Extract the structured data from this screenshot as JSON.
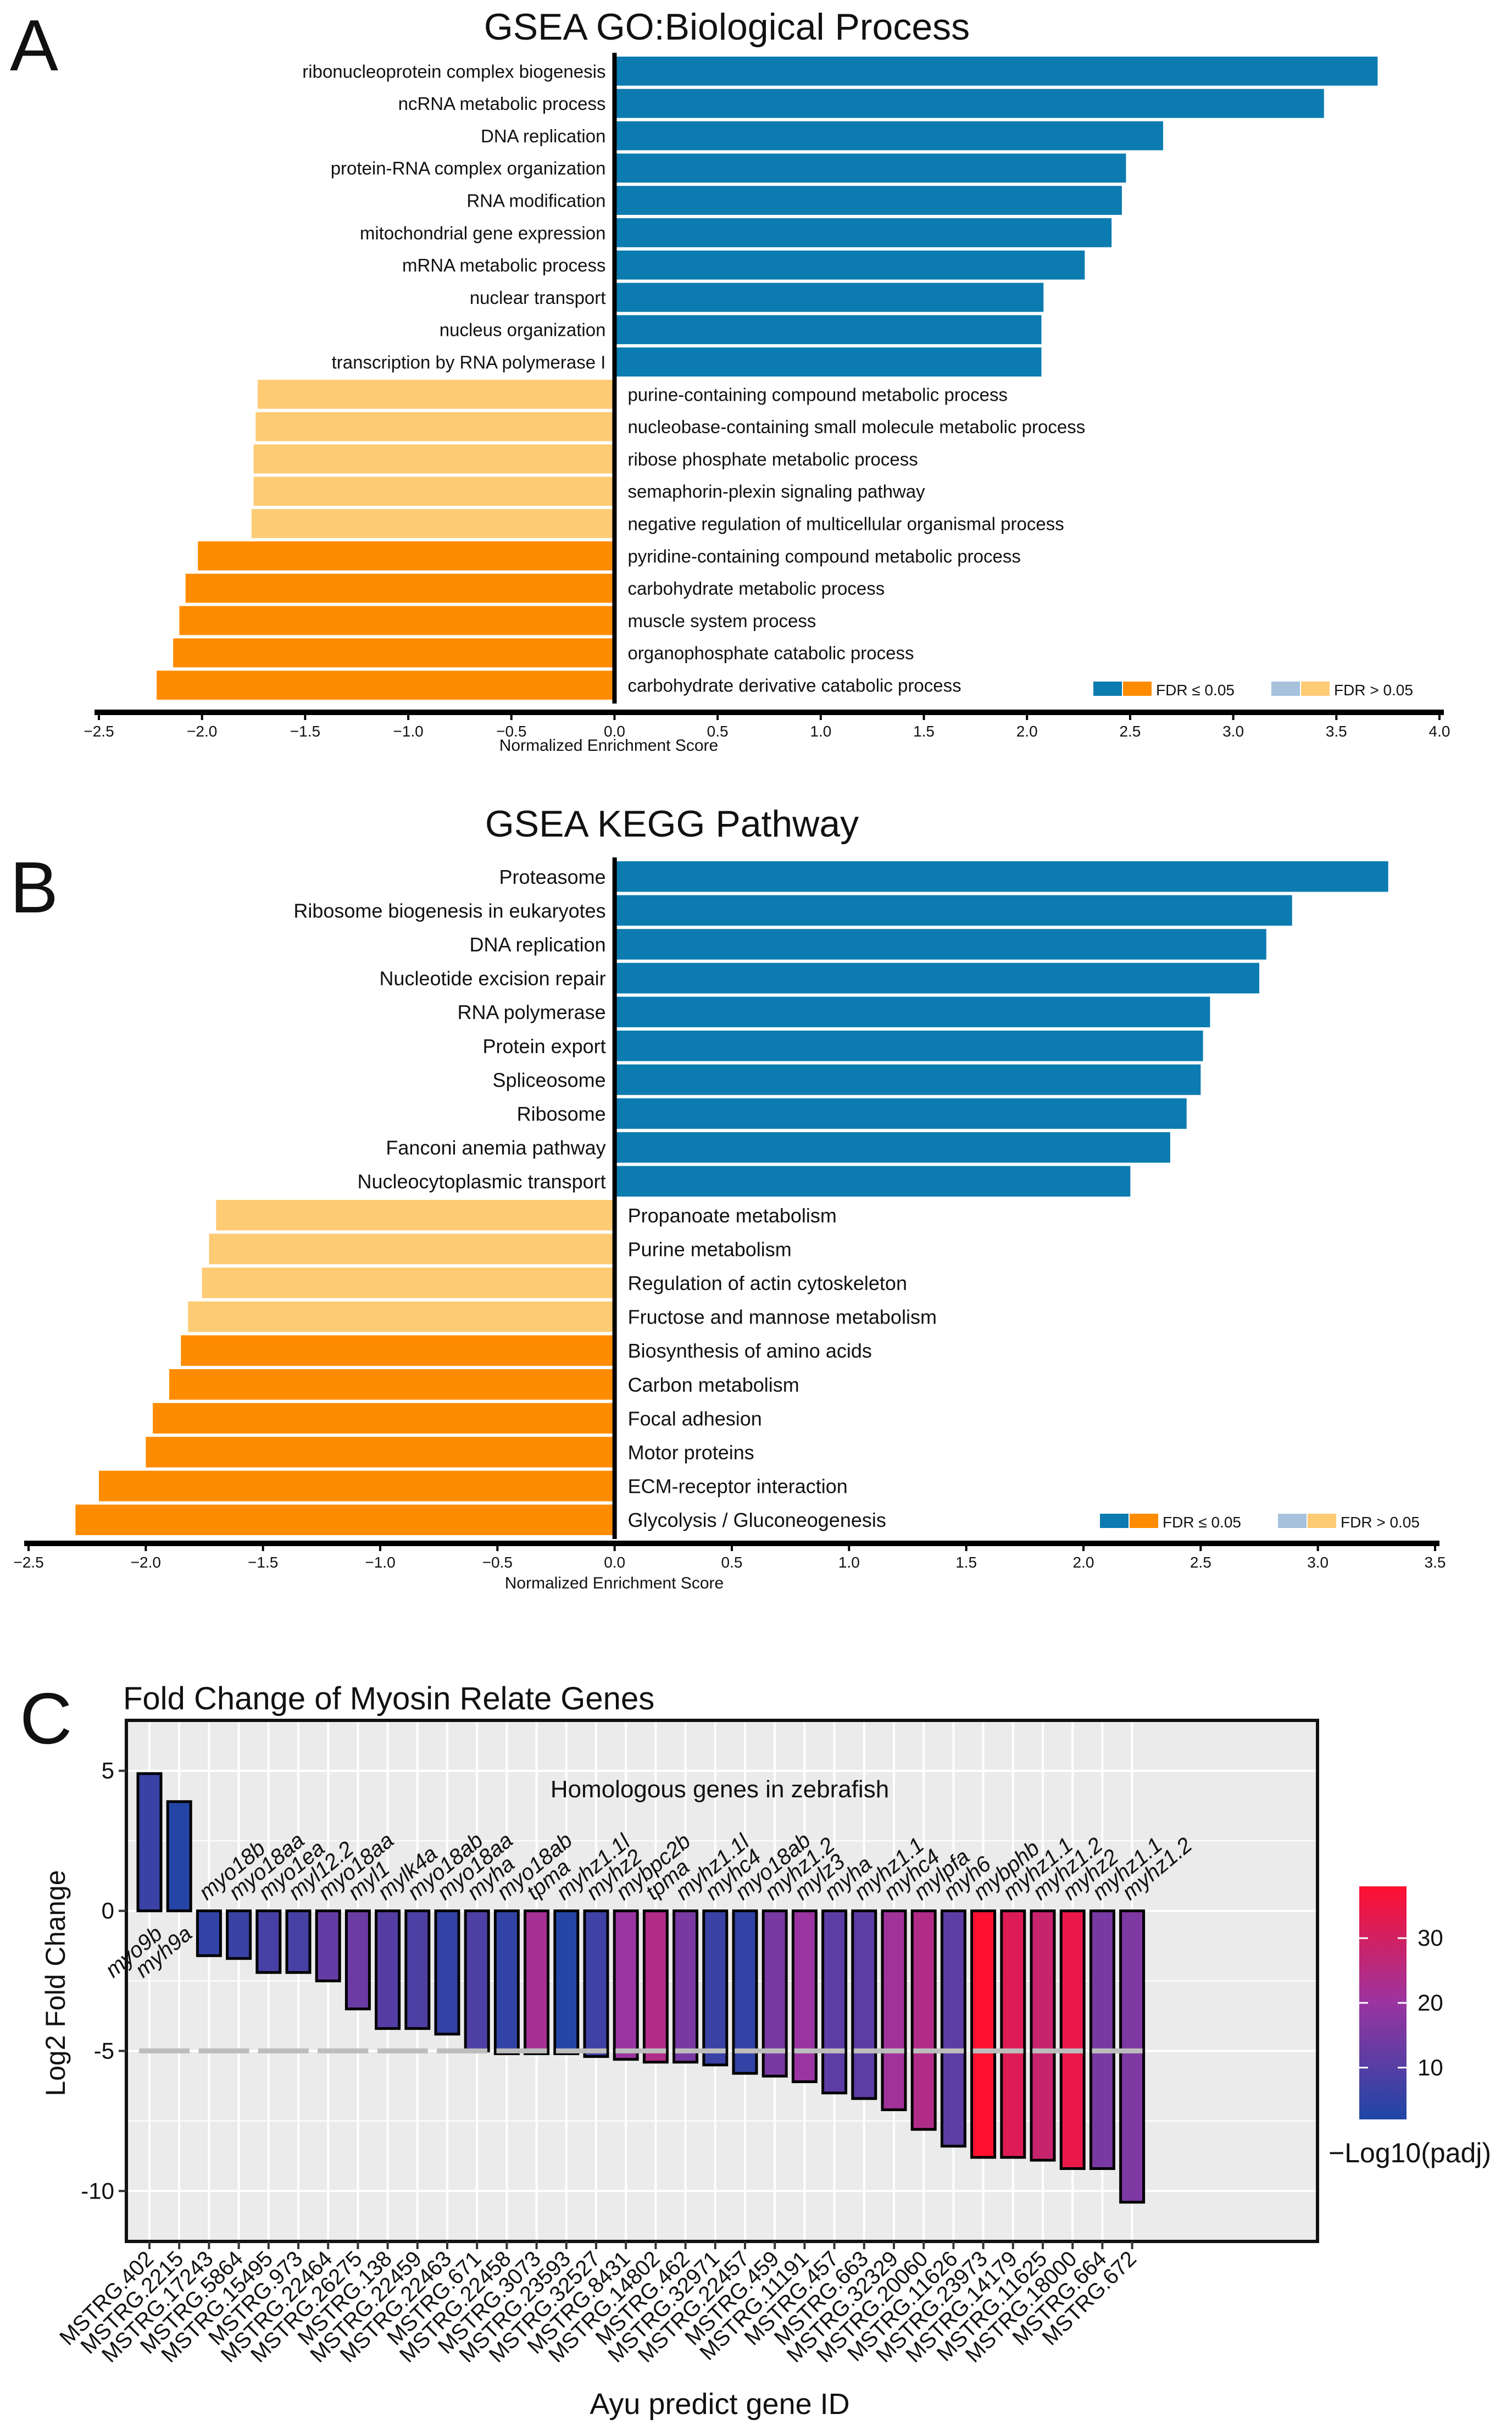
{
  "figure": {
    "panel_letters": [
      "A",
      "B",
      "C"
    ]
  },
  "colors": {
    "up_sig": "#0b7bb0",
    "up_ns": "#a6c1dc",
    "down_sig": "#ff8c00",
    "down_ns": "#fdcb74",
    "heat_low": "#1e46a6",
    "heat_mid": "#9a34a0",
    "heat_high": "#ff1030",
    "dash": "#bdbdbd"
  },
  "chart_data": [
    {
      "id": "A",
      "type": "bar",
      "orientation": "horizontal",
      "title": "GSEA GO:Biological Process",
      "xlabel": "Normalized Enrichment Score",
      "xlim": [
        -2.5,
        4.0
      ],
      "xticks": [
        "−2.5",
        "−2.0",
        "−1.5",
        "−1.0",
        "−0.5",
        "0.0",
        "0.5",
        "1.0",
        "1.5",
        "2.0",
        "2.5",
        "3.0",
        "3.5",
        "4.0"
      ],
      "legend": {
        "placement": "bottom-right",
        "sig_label": "FDR ≤ 0.05",
        "ns_label": "FDR > 0.05"
      },
      "categories": [
        "ribonucleoprotein complex biogenesis",
        "ncRNA metabolic process",
        "DNA replication",
        "protein-RNA complex organization",
        "RNA modification",
        "mitochondrial gene expression",
        "mRNA metabolic process",
        "nuclear transport",
        "nucleus organization",
        "transcription by RNA polymerase I",
        "purine-containing compound metabolic process",
        "nucleobase-containing small molecule metabolic process",
        "ribose phosphate metabolic process",
        "semaphorin-plexin signaling pathway",
        "negative regulation of multicellular organismal process",
        "pyridine-containing compound metabolic process",
        "carbohydrate metabolic process",
        "muscle system process",
        "organophosphate catabolic process",
        "carbohydrate derivative catabolic process"
      ],
      "values": [
        3.7,
        3.44,
        2.66,
        2.48,
        2.46,
        2.41,
        2.28,
        2.08,
        2.07,
        2.07,
        -1.73,
        -1.74,
        -1.75,
        -1.75,
        -1.76,
        -2.02,
        -2.08,
        -2.11,
        -2.14,
        -2.22
      ],
      "fdr_significant": [
        true,
        true,
        true,
        true,
        true,
        true,
        true,
        true,
        true,
        true,
        false,
        false,
        false,
        false,
        false,
        true,
        true,
        true,
        true,
        true
      ]
    },
    {
      "id": "B",
      "type": "bar",
      "orientation": "horizontal",
      "title": "GSEA KEGG Pathway",
      "xlabel": "Normalized Enrichment Score",
      "xlim": [
        -2.5,
        3.5
      ],
      "xticks": [
        "−2.5",
        "−2.0",
        "−1.5",
        "−1.0",
        "−0.5",
        "0.0",
        "0.5",
        "1.0",
        "1.5",
        "2.0",
        "2.5",
        "3.0",
        "3.5"
      ],
      "legend": {
        "placement": "bottom-right",
        "sig_label": "FDR ≤ 0.05",
        "ns_label": "FDR > 0.05"
      },
      "categories": [
        "Proteasome",
        "Ribosome biogenesis in eukaryotes",
        "DNA replication",
        "Nucleotide excision repair",
        "RNA polymerase",
        "Protein export",
        "Spliceosome",
        "Ribosome",
        "Fanconi anemia pathway",
        "Nucleocytoplasmic transport",
        "Propanoate metabolism",
        "Purine metabolism",
        "Regulation of actin cytoskeleton",
        "Fructose and mannose metabolism",
        "Biosynthesis of amino acids",
        "Carbon metabolism",
        "Focal adhesion",
        "Motor proteins",
        "ECM-receptor interaction",
        "Glycolysis / Gluconeogenesis"
      ],
      "values": [
        3.3,
        2.89,
        2.78,
        2.75,
        2.54,
        2.51,
        2.5,
        2.44,
        2.37,
        2.2,
        -1.7,
        -1.73,
        -1.76,
        -1.82,
        -1.85,
        -1.9,
        -1.97,
        -2.0,
        -2.2,
        -2.3
      ],
      "fdr_significant": [
        true,
        true,
        true,
        true,
        true,
        true,
        true,
        true,
        true,
        true,
        false,
        false,
        false,
        false,
        true,
        true,
        true,
        true,
        true,
        true
      ]
    },
    {
      "id": "C",
      "type": "bar",
      "orientation": "vertical",
      "title": "Fold Change of Myosin Relate Genes",
      "subtitle": "Homologous genes in zebrafish",
      "xlabel": "Ayu predict gene ID",
      "ylabel": "Log2 Fold Change",
      "ylim": [
        -11.8,
        6.8
      ],
      "yticks": [
        5,
        0,
        -5,
        -10
      ],
      "reference_line_dashed": -5,
      "colorbar": {
        "title": "−Log10(padj)",
        "ticks": [
          10,
          20,
          30
        ],
        "range": [
          2,
          38
        ]
      },
      "categories": [
        "MSTRG.402",
        "MSTRG.2215",
        "MSTRG.17243",
        "MSTRG.5864",
        "MSTRG.15495",
        "MSTRG.973",
        "MSTRG.22464",
        "MSTRG.26275",
        "MSTRG.138",
        "MSTRG.22459",
        "MSTRG.22463",
        "MSTRG.671",
        "MSTRG.22458",
        "MSTRG.3073",
        "MSTRG.23593",
        "MSTRG.32527",
        "MSTRG.8431",
        "MSTRG.14802",
        "MSTRG.462",
        "MSTRG.32971",
        "MSTRG.22457",
        "MSTRG.459",
        "MSTRG.11191",
        "MSTRG.457",
        "MSTRG.663",
        "MSTRG.32329",
        "MSTRG.20060",
        "MSTRG.11626",
        "MSTRG.23973",
        "MSTRG.14179",
        "MSTRG.11625",
        "MSTRG.18000",
        "MSTRG.664",
        "MSTRG.672"
      ],
      "gene_labels": [
        "myo9b",
        "myh9a",
        "myo18b",
        "myo18aa",
        "myo1ea",
        "myl12.2",
        "myo18aa",
        "myl1",
        "mylk4a",
        "myo18ab",
        "myo18aa",
        "myha",
        "myo18ab",
        "tpma",
        "myhz1.1l",
        "myhz2",
        "mybpc2b",
        "tpma",
        "myhz1.1l",
        "myhc4",
        "myo18ab",
        "myhz1.2",
        "mylz3",
        "myha",
        "myhz1.1",
        "myhc4",
        "mylpfa",
        "myh6",
        "mybphb",
        "myhz1.1",
        "myhz1.2",
        "myhz2",
        "myhz1.1",
        "myhz1.2"
      ],
      "values": [
        4.9,
        3.9,
        -1.6,
        -1.7,
        -2.2,
        -2.2,
        -2.5,
        -3.5,
        -4.2,
        -4.2,
        -4.4,
        -5.0,
        -5.1,
        -5.1,
        -5.1,
        -5.2,
        -5.3,
        -5.4,
        -5.4,
        -5.5,
        -5.8,
        -5.9,
        -6.1,
        -6.5,
        -6.7,
        -7.1,
        -7.8,
        -8.4,
        -8.8,
        -8.8,
        -8.9,
        -9.2,
        -9.2,
        -10.4
      ],
      "neg_log10_padj": [
        6,
        3,
        5,
        6,
        8,
        8,
        12,
        13,
        10,
        9,
        5,
        9,
        5,
        22,
        3,
        7,
        20,
        24,
        15,
        6,
        5,
        15,
        20,
        11,
        11,
        21,
        24,
        11,
        38,
        32,
        28,
        34,
        15,
        16
      ]
    }
  ]
}
